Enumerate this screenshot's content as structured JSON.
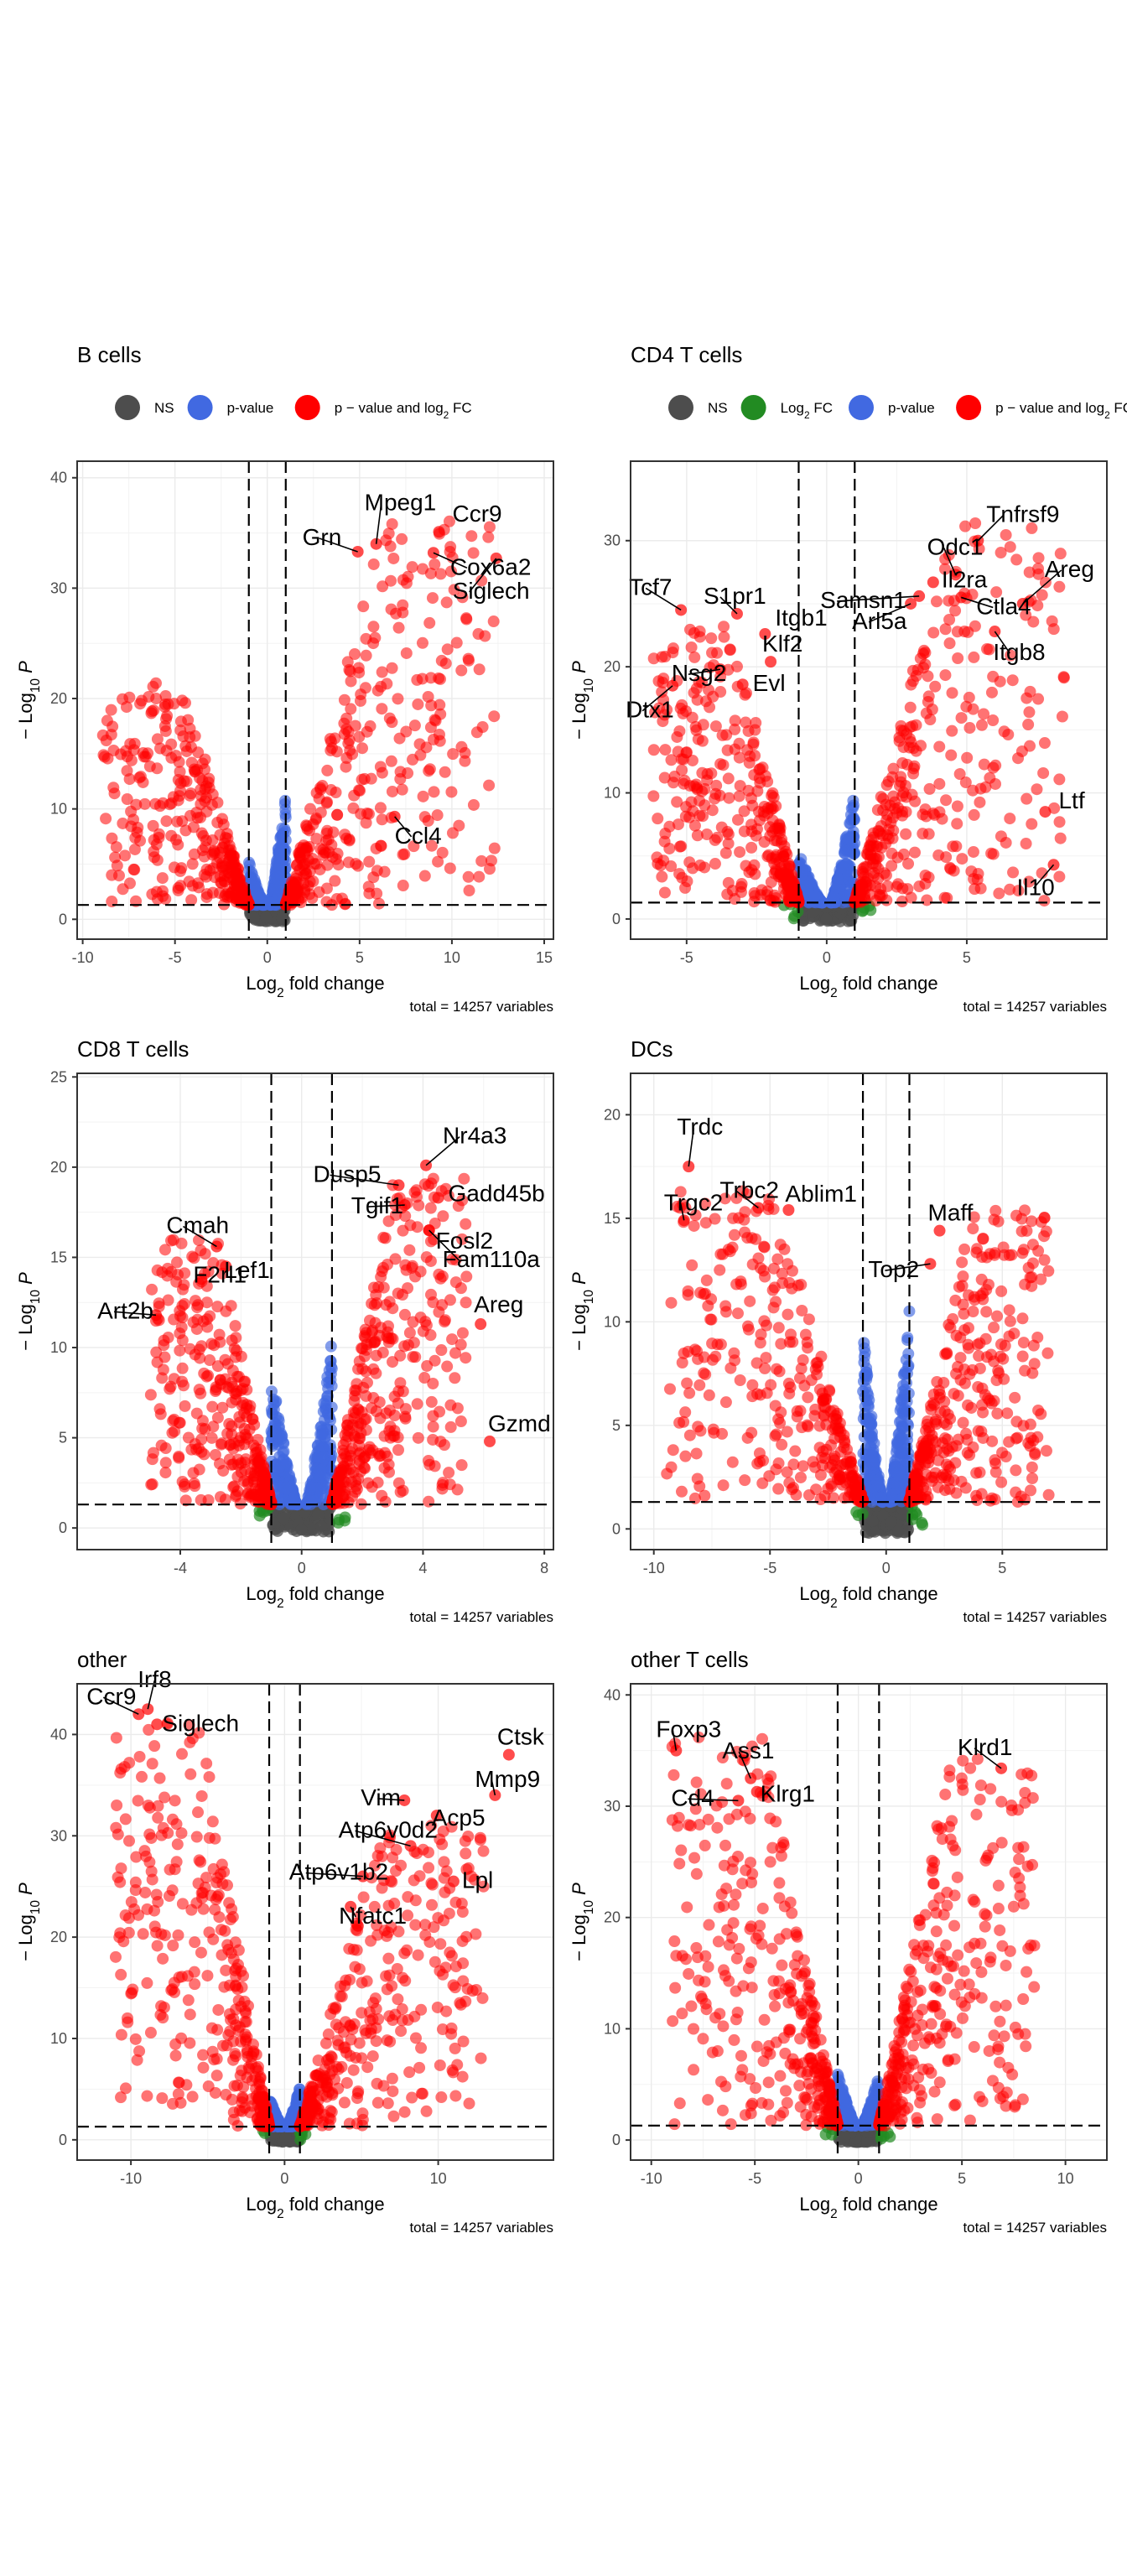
{
  "chart_data": [
    {
      "type": "scatter",
      "title": "B cells",
      "xlabel": "Log2 fold change",
      "ylabel": "-Log10 P",
      "caption": "total = 14257 variables",
      "xlim": [
        -10.3,
        15.5
      ],
      "ylim": [
        -1.8,
        41.5
      ],
      "xticks": [
        -10,
        -5,
        0,
        5,
        10,
        15
      ],
      "yticks": [
        0,
        10,
        20,
        30,
        40
      ],
      "fc_cutoffs": [
        -1,
        1
      ],
      "p_cutoff": 1.3,
      "legend": [
        {
          "label": "NS",
          "color": "#4d4d4d"
        },
        {
          "label": "p-value",
          "color": "#4169e1"
        },
        {
          "label": "p − value and log",
          "sub": "2",
          "suffix": " FC",
          "color": "#ff0000"
        }
      ],
      "labels": [
        {
          "gene": "Ccr9",
          "x": 9.3,
          "y": 35.1
        },
        {
          "gene": "Mpeg1",
          "x": 5.9,
          "y": 34.0
        },
        {
          "gene": "Grn",
          "x": 4.9,
          "y": 33.3
        },
        {
          "gene": "Cox6a2",
          "x": 9.0,
          "y": 33.2
        },
        {
          "gene": "Siglech",
          "x": 12.4,
          "y": 32.7
        },
        {
          "gene": "Ccl4",
          "x": 6.9,
          "y": 9.3
        }
      ],
      "red_cloud": {
        "neg": [
          -9.0,
          -1.0,
          0,
          20
        ],
        "pos": [
          1.0,
          12.5,
          0,
          35
        ]
      },
      "blue_cloud": {
        "neg_peak": 4.0,
        "pos_peak": 11.0
      }
    },
    {
      "type": "scatter",
      "title": "CD4 T cells",
      "xlabel": "Log2 fold change",
      "ylabel": "-Log10 P",
      "caption": "total = 14257 variables",
      "xlim": [
        -7.0,
        10.0
      ],
      "ylim": [
        -1.6,
        36.3
      ],
      "xticks": [
        -5,
        0,
        5
      ],
      "yticks": [
        0,
        10,
        20,
        30
      ],
      "fc_cutoffs": [
        -1,
        1
      ],
      "p_cutoff": 1.3,
      "legend": [
        {
          "label": "NS",
          "color": "#4d4d4d"
        },
        {
          "label": "Log",
          "sub": "2",
          "suffix": " FC",
          "color": "#228b22"
        },
        {
          "label": "p-value",
          "color": "#4169e1"
        },
        {
          "label": "p − value and log",
          "sub": "2",
          "suffix": " FC",
          "color": "#ff0000"
        }
      ],
      "labels": [
        {
          "gene": "Tnfrsf9",
          "x": 5.4,
          "y": 30.0
        },
        {
          "gene": "Odc1",
          "x": 4.6,
          "y": 27.3
        },
        {
          "gene": "Il2ra",
          "x": 3.8,
          "y": 26.7
        },
        {
          "gene": "Samsn1",
          "x": 3.3,
          "y": 25.6
        },
        {
          "gene": "Arl5a",
          "x": 3.0,
          "y": 25.0
        },
        {
          "gene": "Ctla4",
          "x": 4.8,
          "y": 25.5
        },
        {
          "gene": "Areg",
          "x": 7.0,
          "y": 25.0
        },
        {
          "gene": "Itgb8",
          "x": 6.0,
          "y": 22.8
        },
        {
          "gene": "Tcf7",
          "x": -5.2,
          "y": 24.5
        },
        {
          "gene": "S1pr1",
          "x": -3.2,
          "y": 24.2
        },
        {
          "gene": "Itgb1",
          "x": -2.2,
          "y": 22.6
        },
        {
          "gene": "Nsg2",
          "x": -3.8,
          "y": 19.8
        },
        {
          "gene": "Klf2",
          "x": -2.0,
          "y": 20.4
        },
        {
          "gene": "Dtx1",
          "x": -5.5,
          "y": 18.5
        },
        {
          "gene": "Evl",
          "x": -3.0,
          "y": 18.6
        },
        {
          "gene": "Ltf",
          "x": 7.8,
          "y": 8.5
        },
        {
          "gene": "Il10",
          "x": 8.1,
          "y": 4.3
        }
      ],
      "red_cloud": {
        "neg": [
          -6.2,
          -1.0,
          0,
          22
        ],
        "pos": [
          1.0,
          8.5,
          0,
          30
        ]
      },
      "blue_cloud": {
        "neg_peak": 4.0,
        "pos_peak": 9.0
      }
    },
    {
      "type": "scatter",
      "title": "CD8 T cells",
      "xlabel": "Log2 fold change",
      "ylabel": "-Log10 P",
      "caption": "total = 14257 variables",
      "xlim": [
        -7.4,
        8.3
      ],
      "ylim": [
        -1.2,
        25.2
      ],
      "xticks": [
        -4,
        0,
        4,
        8
      ],
      "yticks": [
        0,
        5,
        10,
        15,
        20,
        25
      ],
      "fc_cutoffs": [
        -1,
        1
      ],
      "p_cutoff": 1.3,
      "labels": [
        {
          "gene": "Nr4a3",
          "x": 4.1,
          "y": 20.1
        },
        {
          "gene": "Dusp5",
          "x": 3.2,
          "y": 19.0
        },
        {
          "gene": "Gadd45b",
          "x": 4.5,
          "y": 18.3
        },
        {
          "gene": "Tgif1",
          "x": 3.4,
          "y": 17.9
        },
        {
          "gene": "Fosl2",
          "x": 4.2,
          "y": 16.5
        },
        {
          "gene": "Fam110a",
          "x": 4.2,
          "y": 16.5
        },
        {
          "gene": "Cmah",
          "x": -2.8,
          "y": 15.6
        },
        {
          "gene": "Lef1",
          "x": -2.5,
          "y": 14.5
        },
        {
          "gene": "Art2b",
          "x": -4.8,
          "y": 11.8
        },
        {
          "gene": "F2rl1",
          "x": -3.3,
          "y": 13.8
        },
        {
          "gene": "Areg",
          "x": 5.9,
          "y": 11.3
        },
        {
          "gene": "Gzmd",
          "x": 6.2,
          "y": 4.8
        }
      ],
      "red_cloud": {
        "neg": [
          -5.0,
          -1.0,
          0,
          15
        ],
        "pos": [
          1.0,
          5.5,
          0,
          18
        ]
      },
      "blue_cloud": {
        "neg_peak": 7.5,
        "pos_peak": 9.5
      }
    },
    {
      "type": "scatter",
      "title": "DCs",
      "xlabel": "Log2 fold change",
      "ylabel": "-Log10 P",
      "caption": "total = 14257 variables",
      "xlim": [
        -11.0,
        9.5
      ],
      "ylim": [
        -1.0,
        22.0
      ],
      "xticks": [
        -10,
        -5,
        0,
        5
      ],
      "yticks": [
        0,
        5,
        10,
        15,
        20
      ],
      "fc_cutoffs": [
        -1,
        1
      ],
      "p_cutoff": 1.3,
      "labels": [
        {
          "gene": "Trdc",
          "x": -8.5,
          "y": 17.5
        },
        {
          "gene": "Trgc2",
          "x": -8.7,
          "y": 14.9
        },
        {
          "gene": "Trbc2",
          "x": -5.5,
          "y": 15.5
        },
        {
          "gene": "Ablim1",
          "x": -4.2,
          "y": 15.4
        },
        {
          "gene": "Maff",
          "x": 2.3,
          "y": 14.4
        },
        {
          "gene": "Top2",
          "x": 1.9,
          "y": 12.8
        }
      ],
      "red_cloud": {
        "neg": [
          -9.5,
          -1.0,
          0,
          15
        ],
        "pos": [
          1.0,
          7.0,
          0,
          14
        ]
      },
      "blue_cloud": {
        "neg_peak": 8.5,
        "pos_peak": 9.5
      }
    },
    {
      "type": "scatter",
      "title": "other",
      "xlabel": "Log2 fold change",
      "ylabel": "-Log10 P",
      "caption": "total = 14257 variables",
      "xlim": [
        -13.5,
        17.5
      ],
      "ylim": [
        -2.0,
        45.0
      ],
      "xticks": [
        -10,
        0,
        10
      ],
      "yticks": [
        0,
        10,
        20,
        30,
        40
      ],
      "fc_cutoffs": [
        -1,
        1
      ],
      "p_cutoff": 1.3,
      "labels": [
        {
          "gene": "Ccr9",
          "x": -9.5,
          "y": 42.0
        },
        {
          "gene": "Irf8",
          "x": -8.9,
          "y": 42.5
        },
        {
          "gene": "Siglech",
          "x": -8.3,
          "y": 41.0
        },
        {
          "gene": "Ctsk",
          "x": 14.6,
          "y": 38.0
        },
        {
          "gene": "Mmp9",
          "x": 13.7,
          "y": 34.0
        },
        {
          "gene": "Vim",
          "x": 7.8,
          "y": 33.5
        },
        {
          "gene": "Acp5",
          "x": 9.9,
          "y": 32.0
        },
        {
          "gene": "Atp6v0d2",
          "x": 8.2,
          "y": 29.0
        },
        {
          "gene": "Atp6v1b2",
          "x": 5.1,
          "y": 26.0
        },
        {
          "gene": "Lpl",
          "x": 11.0,
          "y": 25.5
        },
        {
          "gene": "Nfatc1",
          "x": 4.3,
          "y": 23.0
        }
      ],
      "red_cloud": {
        "neg": [
          -11.0,
          -1.0,
          0,
          40
        ],
        "pos": [
          1.0,
          13.0,
          0,
          30
        ]
      },
      "blue_cloud": {
        "neg_peak": 3.0,
        "pos_peak": 4.0
      }
    },
    {
      "type": "scatter",
      "title": "other T cells",
      "xlabel": "Log2 fold change",
      "ylabel": "-Log10 P",
      "caption": "total = 14257 variables",
      "xlim": [
        -11.0,
        12.0
      ],
      "ylim": [
        -1.8,
        41.0
      ],
      "xticks": [
        -10,
        -5,
        0,
        5,
        10
      ],
      "yticks": [
        0,
        10,
        20,
        30,
        40
      ],
      "fc_cutoffs": [
        -1,
        1
      ],
      "p_cutoff": 1.3,
      "labels": [
        {
          "gene": "Foxp3",
          "x": -8.8,
          "y": 35.0
        },
        {
          "gene": "Ass1",
          "x": -5.2,
          "y": 32.5
        },
        {
          "gene": "Cd4",
          "x": -5.8,
          "y": 30.5
        },
        {
          "gene": "Klrg1",
          "x": -4.9,
          "y": 31.3
        },
        {
          "gene": "Klrd1",
          "x": 6.9,
          "y": 33.4
        }
      ],
      "red_cloud": {
        "neg": [
          -9.0,
          -1.0,
          0,
          35
        ],
        "pos": [
          1.0,
          8.5,
          0,
          33
        ]
      },
      "blue_cloud": {
        "neg_peak": 5.0,
        "pos_peak": 4.5
      }
    }
  ]
}
